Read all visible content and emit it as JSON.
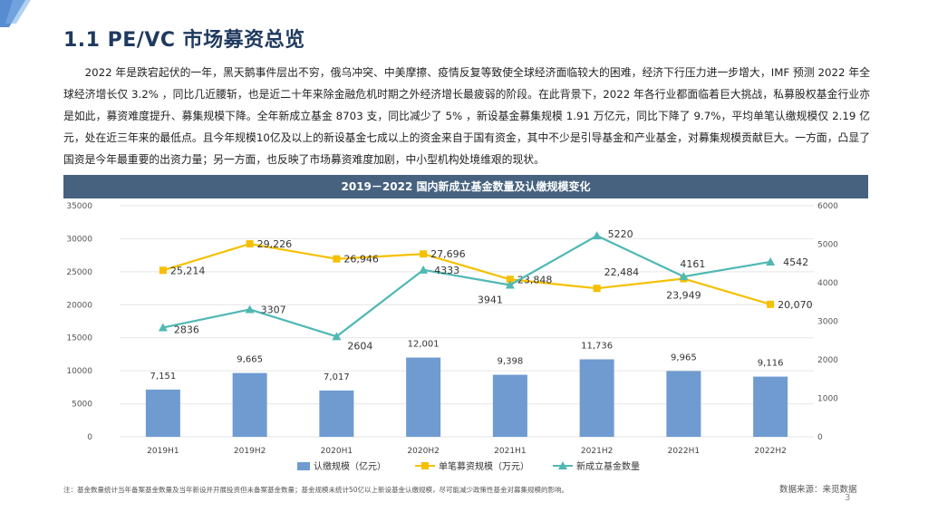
{
  "page_title": "1.1 PE/VC 市场募资总览",
  "paragraph": "2022 年是跌宕起伏的一年，黑天鹅事件层出不穷，俄乌冲突、中美摩擦、疫情反复等致使全球经济面临较大的困难，经济下行压力进一步增大，IMF 预测 2022 年全球经济增长仅 3.2% ，同比几近腰斩，也是近二十年来除金融危机时期之外经济增长最疲弱的阶段。在此背景下，2022 年各行业都面临着巨大挑战，私募股权基金行业亦是如此，募资难度提升、募集规模下降。全年新成立基金 8703 支，同比减少了 5% ，新设基金募集规模 1.91 万亿元，同比下降了 9.7%，平均单笔认缴规模仅 2.19 亿元，处在近三年来的最低点。且今年规模10亿及以上的新设基金七成以上的资金来自于国有资金，其中不少是引导基金和产业基金，对募集规模贡献巨大。一方面，凸显了国资是今年最重要的出资力量；另一方面，也反映了市场募资难度加剧，中小型机构处境维艰的现状。",
  "chart_data": {
    "type": "bar",
    "title": "2019－2022 国内新成立基金数量及认缴规模变化",
    "categories": [
      "2019H1",
      "2019H2",
      "2020H1",
      "2020H2",
      "2021H1",
      "2021H2",
      "2022H1",
      "2022H2"
    ],
    "left_axis": {
      "ylim": [
        0,
        35000
      ],
      "ticks": [
        "0",
        "5000",
        "10000",
        "15000",
        "20000",
        "25000",
        "30000",
        "35000"
      ]
    },
    "right_axis": {
      "ylim": [
        0,
        6000
      ],
      "ticks": [
        "0",
        "1000",
        "2000",
        "3000",
        "4000",
        "5000",
        "6000"
      ]
    },
    "series": [
      {
        "name": "认缴规模（亿元）",
        "kind": "bar",
        "axis": "left",
        "values": [
          7151,
          9665,
          7017,
          12001,
          9398,
          11736,
          9965,
          9116
        ],
        "labels": [
          "7,151",
          "9,665",
          "7,017",
          "12,001",
          "9,398",
          "11,736",
          "9,965",
          "9,116"
        ]
      },
      {
        "name": "单笔募资规模（万元）",
        "kind": "line",
        "axis": "left",
        "values": [
          25214,
          29226,
          26946,
          27696,
          23848,
          22484,
          23949,
          20070
        ],
        "labels": [
          "25,214",
          "29,226",
          "26,946",
          "27,696",
          "23,848",
          "22,484",
          "23,949",
          "20,070"
        ]
      },
      {
        "name": "新成立基金数量",
        "kind": "line",
        "axis": "right",
        "values": [
          2836,
          3307,
          2604,
          4333,
          3941,
          5220,
          4161,
          4542
        ],
        "labels": [
          "2836",
          "3307",
          "2604",
          "4333",
          "3941",
          "5220",
          "4161",
          "4542"
        ]
      }
    ],
    "colors": {
      "bar": "#6f9bd1",
      "line1": "#f5c000",
      "line2": "#4fb8b4"
    },
    "legend_position": "bottom",
    "grid": true
  },
  "footnote": "注：基金数量统计当年备案基金数量及当年新设并开展投资但未备案基金数量；基金规模未统计50亿以上新设基金认缴规模，尽可能减少政策性基金对募集规模的影响。",
  "source": "数据来源：来觅数据",
  "page_number": "3"
}
